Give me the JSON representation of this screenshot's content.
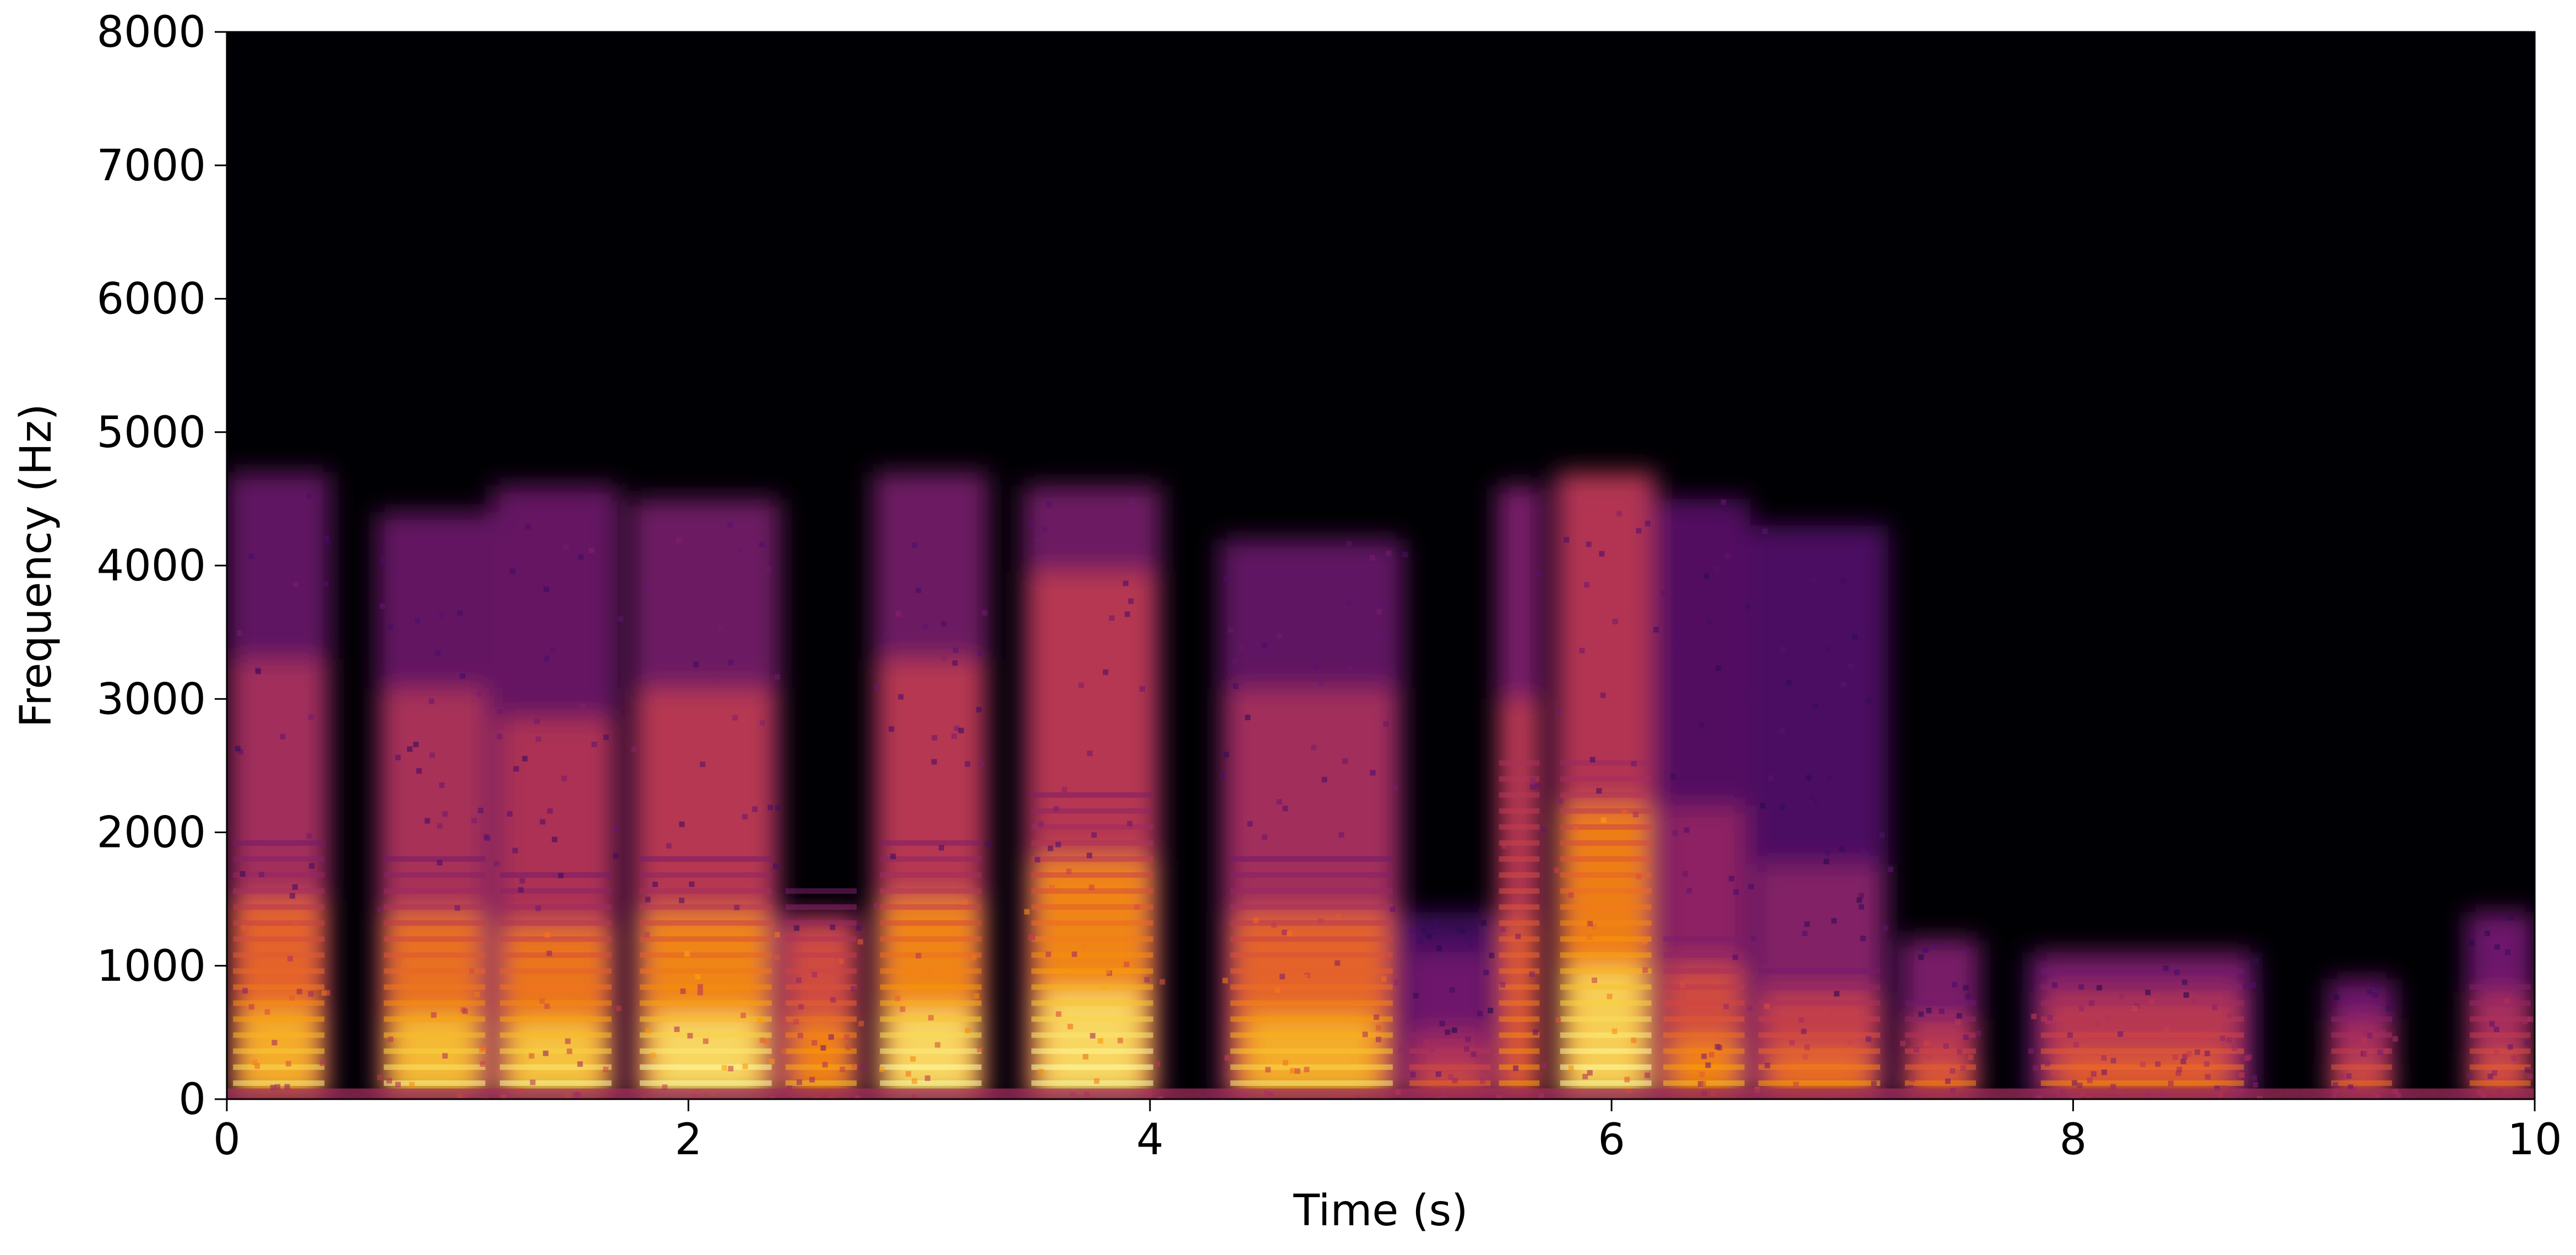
{
  "chart_data": {
    "type": "heatmap",
    "title": "",
    "xlabel": "Time (s)",
    "ylabel": "Frequency (Hz)",
    "xlim": [
      0,
      10
    ],
    "ylim": [
      0,
      8000
    ],
    "x_ticks": [
      0,
      2,
      4,
      6,
      8,
      10
    ],
    "y_ticks": [
      0,
      1000,
      2000,
      3000,
      4000,
      5000,
      6000,
      7000,
      8000
    ],
    "colormap": "inferno",
    "colormap_stops": [
      "#000004",
      "#1b0c41",
      "#4a0c6b",
      "#781c6d",
      "#a52c60",
      "#cf4446",
      "#ed6925",
      "#fb9b06",
      "#f7d13d",
      "#fcffa4"
    ],
    "grid": false,
    "segments": [
      {
        "start": 0.0,
        "end": 0.45,
        "top": 4700,
        "peak": 1500,
        "level": 0.85
      },
      {
        "start": 0.65,
        "end": 1.15,
        "top": 4400,
        "peak": 1400,
        "level": 0.88
      },
      {
        "start": 1.15,
        "end": 1.7,
        "top": 4600,
        "peak": 1300,
        "level": 0.9
      },
      {
        "start": 1.75,
        "end": 2.4,
        "top": 4500,
        "peak": 1400,
        "level": 0.95
      },
      {
        "start": 2.4,
        "end": 2.75,
        "top": 1400,
        "peak": 1300,
        "level": 0.75
      },
      {
        "start": 2.8,
        "end": 3.3,
        "top": 4700,
        "peak": 1500,
        "level": 0.95
      },
      {
        "start": 3.45,
        "end": 4.05,
        "top": 4600,
        "peak": 1800,
        "level": 0.95
      },
      {
        "start": 4.3,
        "end": 5.1,
        "top": 4200,
        "peak": 1400,
        "level": 0.85
      },
      {
        "start": 5.1,
        "end": 5.5,
        "top": 1400,
        "peak": 500,
        "level": 0.6
      },
      {
        "start": 5.5,
        "end": 5.7,
        "top": 4600,
        "peak": 3000,
        "level": 0.65
      },
      {
        "start": 5.75,
        "end": 6.2,
        "top": 4700,
        "peak": 2200,
        "level": 0.93
      },
      {
        "start": 6.2,
        "end": 6.6,
        "top": 4500,
        "peak": 1000,
        "level": 0.75
      },
      {
        "start": 6.6,
        "end": 7.2,
        "top": 4300,
        "peak": 800,
        "level": 0.7
      },
      {
        "start": 7.25,
        "end": 7.6,
        "top": 1200,
        "peak": 600,
        "level": 0.65
      },
      {
        "start": 7.8,
        "end": 8.8,
        "top": 1100,
        "peak": 800,
        "level": 0.65
      },
      {
        "start": 9.1,
        "end": 9.4,
        "top": 900,
        "peak": 600,
        "level": 0.6
      },
      {
        "start": 9.7,
        "end": 10.0,
        "top": 1400,
        "peak": 800,
        "level": 0.6
      }
    ]
  }
}
